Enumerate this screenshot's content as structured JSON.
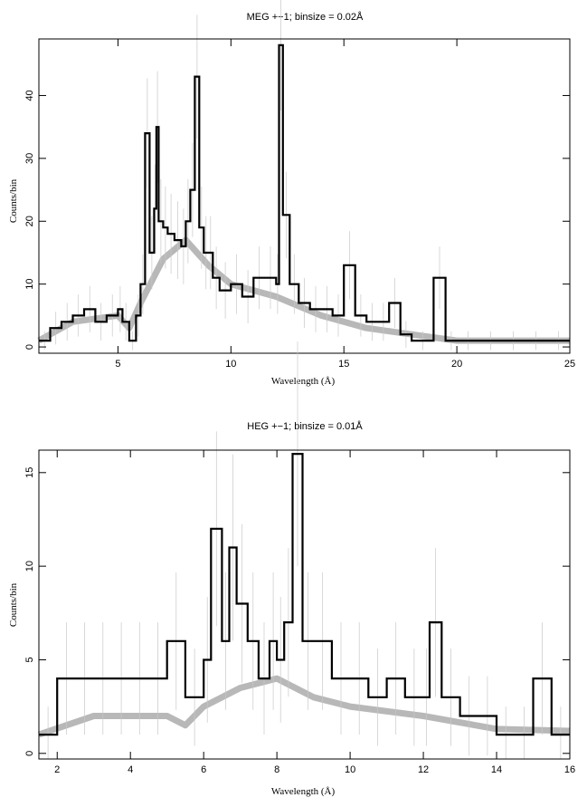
{
  "chart_data": [
    {
      "type": "line",
      "title": "MEG +−1; binsize = 0.02Å",
      "xlabel": "Wavelength (Å)",
      "ylabel": "Counts/bin",
      "xlim": [
        1.5,
        25
      ],
      "ylim": [
        -1,
        49
      ],
      "xticks": [
        5,
        10,
        15,
        20,
        25
      ],
      "yticks": [
        0,
        10,
        20,
        30,
        40
      ],
      "grid": false,
      "series": [
        {
          "style": "data-histogram",
          "x": [
            1.5,
            2.0,
            2.5,
            3.0,
            3.5,
            4.0,
            4.5,
            5.0,
            5.2,
            5.5,
            5.8,
            6.0,
            6.2,
            6.4,
            6.6,
            6.7,
            6.8,
            7.0,
            7.2,
            7.5,
            7.8,
            8.0,
            8.2,
            8.4,
            8.6,
            8.8,
            9.0,
            9.2,
            9.5,
            10.0,
            10.5,
            11.0,
            11.5,
            12.0,
            12.13,
            12.3,
            12.6,
            13.0,
            13.5,
            14.0,
            14.5,
            15.0,
            15.5,
            16.0,
            16.5,
            17.0,
            17.5,
            18.0,
            18.97,
            19.5,
            20.0,
            21.0,
            22.0,
            23.0,
            24.0,
            25.0
          ],
          "y": [
            1,
            3,
            4,
            5,
            6,
            4,
            5,
            6,
            4,
            1,
            5,
            10,
            34,
            15,
            22,
            35,
            20,
            19,
            18,
            17,
            16,
            20,
            25,
            43,
            19,
            15,
            15,
            11,
            9,
            10,
            8,
            11,
            11,
            10,
            48,
            21,
            10,
            7,
            6,
            6,
            5,
            13,
            5,
            4,
            4,
            7,
            2,
            1,
            11,
            1,
            1,
            1,
            1,
            1,
            1,
            1
          ]
        },
        {
          "style": "model-band",
          "x": [
            1.5,
            3.0,
            5.0,
            5.5,
            6.0,
            7.0,
            8.0,
            9.0,
            10.0,
            12.0,
            14.0,
            16.0,
            18.0,
            20.0,
            22.0,
            25.0
          ],
          "y": [
            1,
            4,
            5,
            3,
            7,
            14,
            17,
            13,
            10,
            8,
            5,
            3,
            2,
            1,
            1,
            1
          ]
        }
      ]
    },
    {
      "type": "line",
      "title": "HEG +−1; binsize = 0.01Å",
      "xlabel": "Wavelength (Å)",
      "ylabel": "Counts/bin",
      "xlim": [
        1.5,
        16
      ],
      "ylim": [
        -0.3,
        16.2
      ],
      "xticks": [
        2,
        4,
        6,
        8,
        10,
        12,
        14,
        16
      ],
      "yticks": [
        0,
        5,
        10,
        15
      ],
      "grid": false,
      "series": [
        {
          "style": "data-histogram",
          "x": [
            1.5,
            2.0,
            2.5,
            3.0,
            3.5,
            4.0,
            4.5,
            5.0,
            5.5,
            6.0,
            6.2,
            6.5,
            6.7,
            6.9,
            7.2,
            7.5,
            7.8,
            8.0,
            8.2,
            8.43,
            8.7,
            9.0,
            9.5,
            10.0,
            10.5,
            11.0,
            11.5,
            12.0,
            12.17,
            12.5,
            13.0,
            13.5,
            14.0,
            14.5,
            15.0,
            15.5,
            16.0
          ],
          "y": [
            1,
            4,
            4,
            4,
            4,
            4,
            4,
            6,
            3,
            5,
            12,
            6,
            11,
            8,
            6,
            4,
            6,
            5,
            7,
            16,
            6,
            6,
            4,
            4,
            3,
            4,
            3,
            3,
            7,
            3,
            2,
            2,
            1,
            1,
            4,
            1,
            1
          ]
        },
        {
          "style": "model-band",
          "x": [
            1.5,
            3.0,
            5.0,
            5.5,
            6.0,
            7.0,
            8.0,
            9.0,
            10.0,
            12.0,
            14.0,
            16.0
          ],
          "y": [
            1,
            2,
            2,
            1.5,
            2.5,
            3.5,
            4,
            3,
            2.5,
            2,
            1.3,
            1.2
          ]
        }
      ]
    }
  ]
}
